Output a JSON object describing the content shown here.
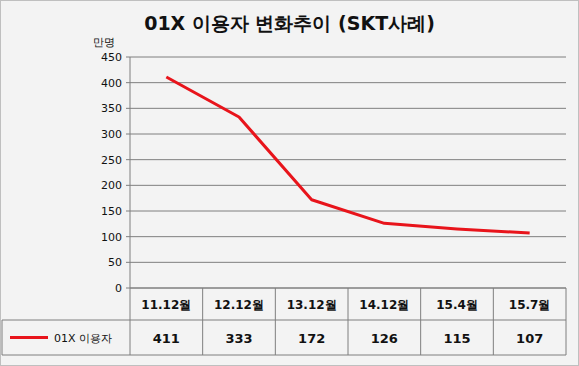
{
  "chart_data": {
    "type": "line",
    "title": "01X 이용자 변화추이 (SKT사례)",
    "ylabel": "만명",
    "categories": [
      "11.12월",
      "12.12월",
      "13.12월",
      "14.12월",
      "15.4월",
      "15.7월"
    ],
    "series": [
      {
        "name": "01X 이용자",
        "color": "#e8141b",
        "values": [
          411,
          333,
          172,
          126,
          115,
          107
        ]
      }
    ],
    "ylim": [
      0,
      450
    ],
    "yticks": [
      0,
      50,
      100,
      150,
      200,
      250,
      300,
      350,
      400,
      450
    ],
    "grid": true
  }
}
